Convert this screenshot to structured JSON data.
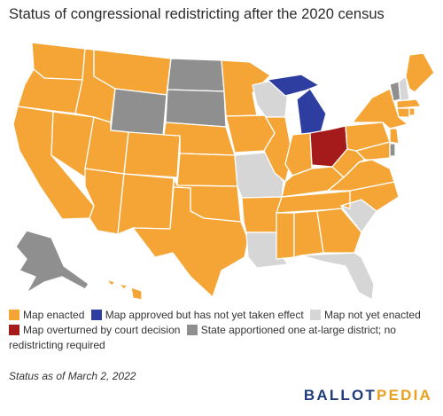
{
  "title": "Status of congressional redistricting after the 2020 census",
  "legend": [
    {
      "key": "enacted",
      "label": "Map enacted",
      "color": "#f5a535"
    },
    {
      "key": "approved",
      "label": "Map approved but has not yet taken effect",
      "color": "#2e3ea0"
    },
    {
      "key": "notyet",
      "label": "Map not yet enacted",
      "color": "#d6d6d6"
    },
    {
      "key": "overturned",
      "label": "Map overturned by court decision",
      "color": "#a51a1a"
    },
    {
      "key": "atlarge",
      "label": "State apportioned one at-large district; no redistricting required",
      "color": "#8f8f8f"
    }
  ],
  "status_note": "Status as of March 2, 2022",
  "logo": {
    "part1": "BALLOT",
    "part2": "PEDIA"
  }
}
